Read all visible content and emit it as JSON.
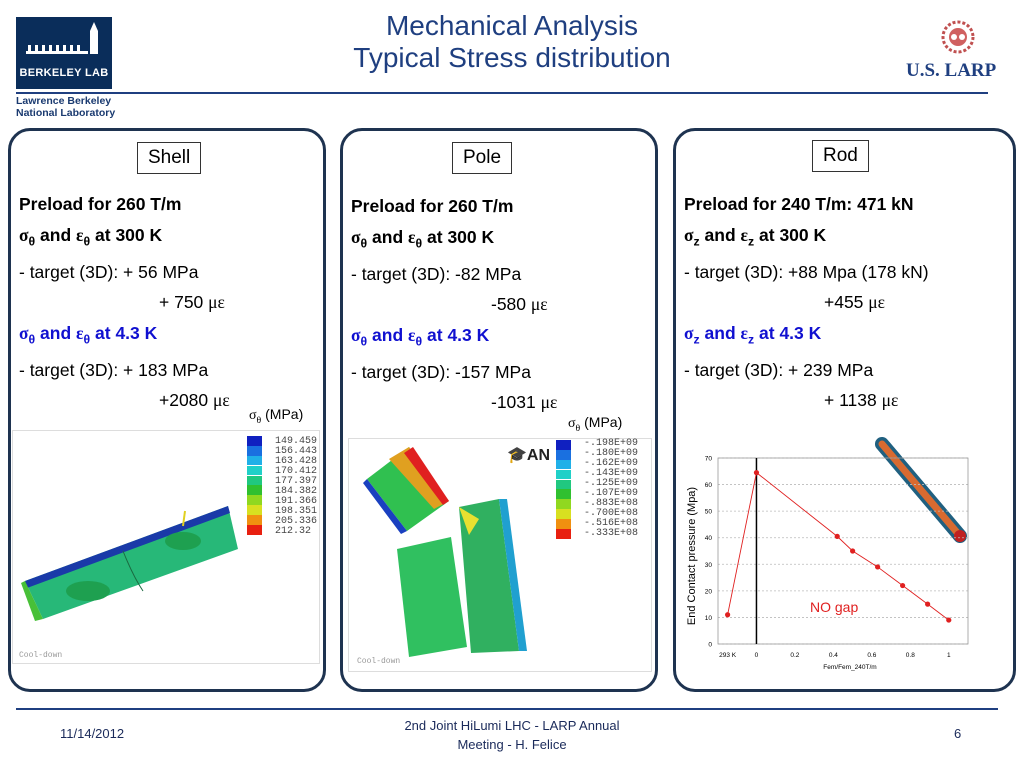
{
  "header": {
    "logo_text": "BERKELEY LAB",
    "lab_name_line1": "Lawrence Berkeley",
    "lab_name_line2": "National Laboratory",
    "title_line1": "Mechanical Analysis",
    "title_line2": "Typical Stress distribution",
    "partner_logo_text": "U.S. LARP"
  },
  "panels": {
    "shell": {
      "tag": "Shell",
      "preload": "Preload for 260 T/m",
      "and": "and",
      "at300": "at 300 K",
      "target300": "- target (3D): + 56 MPa",
      "strain300": "+ 750",
      "at43": "at 4.3 K",
      "target43": "- target (3D): + 183 MPa",
      "strain43": "+2080",
      "legend_title": "(MPa)",
      "legend_values": [
        "149.459",
        "156.443",
        "163.428",
        "170.412",
        "177.397",
        "184.382",
        "191.366",
        "198.351",
        "205.336",
        "212.32"
      ],
      "legend_colors": [
        "#1020c0",
        "#1a70e0",
        "#20b0e8",
        "#20d0c8",
        "#20c880",
        "#30c030",
        "#90d820",
        "#d8e020",
        "#f09010",
        "#e82010"
      ],
      "fem_label": "Cool-down"
    },
    "pole": {
      "tag": "Pole",
      "preload": "Preload for 260 T/m",
      "and": "and",
      "at300": "at 300 K",
      "target300": "- target (3D): -82 MPa",
      "strain300": "-580",
      "at43": "at 4.3 K",
      "target43": "- target (3D): -157 MPa",
      "strain43": "-1031",
      "legend_title": "(MPa)",
      "legend_values": [
        "-.198E+09",
        "-.180E+09",
        "-.162E+09",
        "-.143E+09",
        "-.125E+09",
        "-.107E+09",
        "-.883E+08",
        "-.700E+08",
        "-.516E+08",
        "-.333E+08"
      ],
      "legend_colors": [
        "#1020c0",
        "#1a70e0",
        "#20b0e8",
        "#20d0c8",
        "#20c880",
        "#30c030",
        "#90d820",
        "#d8e020",
        "#f09010",
        "#e82010"
      ],
      "fem_label": "Cool-down",
      "ansys_text": "AN"
    },
    "rod": {
      "tag": "Rod",
      "preload": "Preload for 240 T/m: 471 kN",
      "and": "and",
      "at300": "at 300 K",
      "target300": "- target (3D): +88 Mpa (178 kN)",
      "strain300": "+455",
      "at43": "at 4.3 K",
      "target43": "- target (3D): +  239 MPa",
      "strain43": "+ 1138"
    }
  },
  "symbols": {
    "sigma": "σ",
    "epsilon": "ε",
    "micro_epsilon": "με",
    "theta": "θ",
    "z": "z"
  },
  "chart_data": {
    "type": "line",
    "x": [
      -0.15,
      0,
      0.42,
      0.5,
      0.63,
      0.76,
      0.89,
      1.0
    ],
    "y": [
      11,
      64.5,
      40.5,
      35,
      29,
      22,
      15,
      9
    ],
    "xlim": [
      -0.2,
      1.1
    ],
    "ylim": [
      0,
      70
    ],
    "xticks": [
      "293 K",
      "0",
      "0.2",
      "0.4",
      "0.6",
      "0.8",
      "1"
    ],
    "yticks": [
      "0",
      "10",
      "20",
      "30",
      "40",
      "50",
      "60",
      "70"
    ],
    "xlabel": "Fem/Fem_240T/m",
    "ylabel": "End Contact pressure (Mpa)",
    "annotation": "NO gap",
    "series_color": "#e02020",
    "grid": true
  },
  "footer": {
    "date": "11/14/2012",
    "meeting_line1": "2nd Joint HiLumi LHC - LARP Annual",
    "meeting_line2": "Meeting - H. Felice",
    "page": "6"
  }
}
